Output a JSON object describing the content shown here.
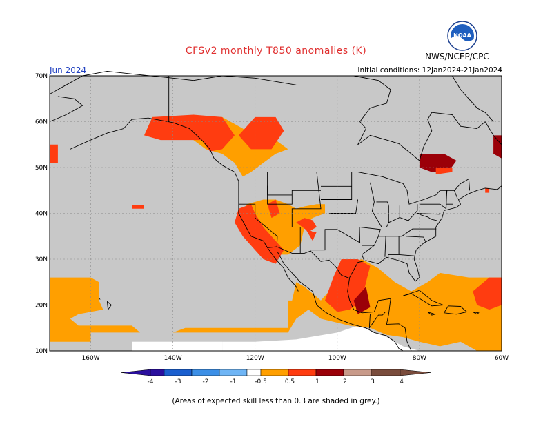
{
  "header": {
    "title": "CFSv2 monthly T850 anomalies (K)",
    "month": "Jun 2024",
    "agency": "NWS/NCEP/CPC",
    "initial_conditions": "Initial conditions: 12Jan2024-21Jan2024",
    "logo_text": "NOAA"
  },
  "map": {
    "lon_range": [
      -170,
      -60
    ],
    "lat_range": [
      10,
      70
    ],
    "lat_labels": [
      "70N",
      "60N",
      "50N",
      "40N",
      "30N",
      "20N",
      "10N"
    ],
    "lon_labels": [
      "160W",
      "140W",
      "120W",
      "100W",
      "80W",
      "60W"
    ],
    "colors": {
      "land_sea_mask": "#c8c8c8",
      "no_data": "#ffffff",
      "coastline": "#000000"
    }
  },
  "legend": {
    "labels": [
      "-4",
      "-3",
      "-2",
      "-1",
      "-0.5",
      "0.5",
      "1",
      "2",
      "3",
      "4"
    ],
    "colors": [
      "#2a0f9e",
      "#1a5fcf",
      "#3c8fe6",
      "#6fb5f5",
      "#ffffff",
      "#ff9f00",
      "#ff3c10",
      "#9b0008",
      "#c89a8a",
      "#7a4c3c"
    ]
  },
  "footer": {
    "caption": "(Areas of expected skill less than 0.3 are shaded in grey.)"
  }
}
